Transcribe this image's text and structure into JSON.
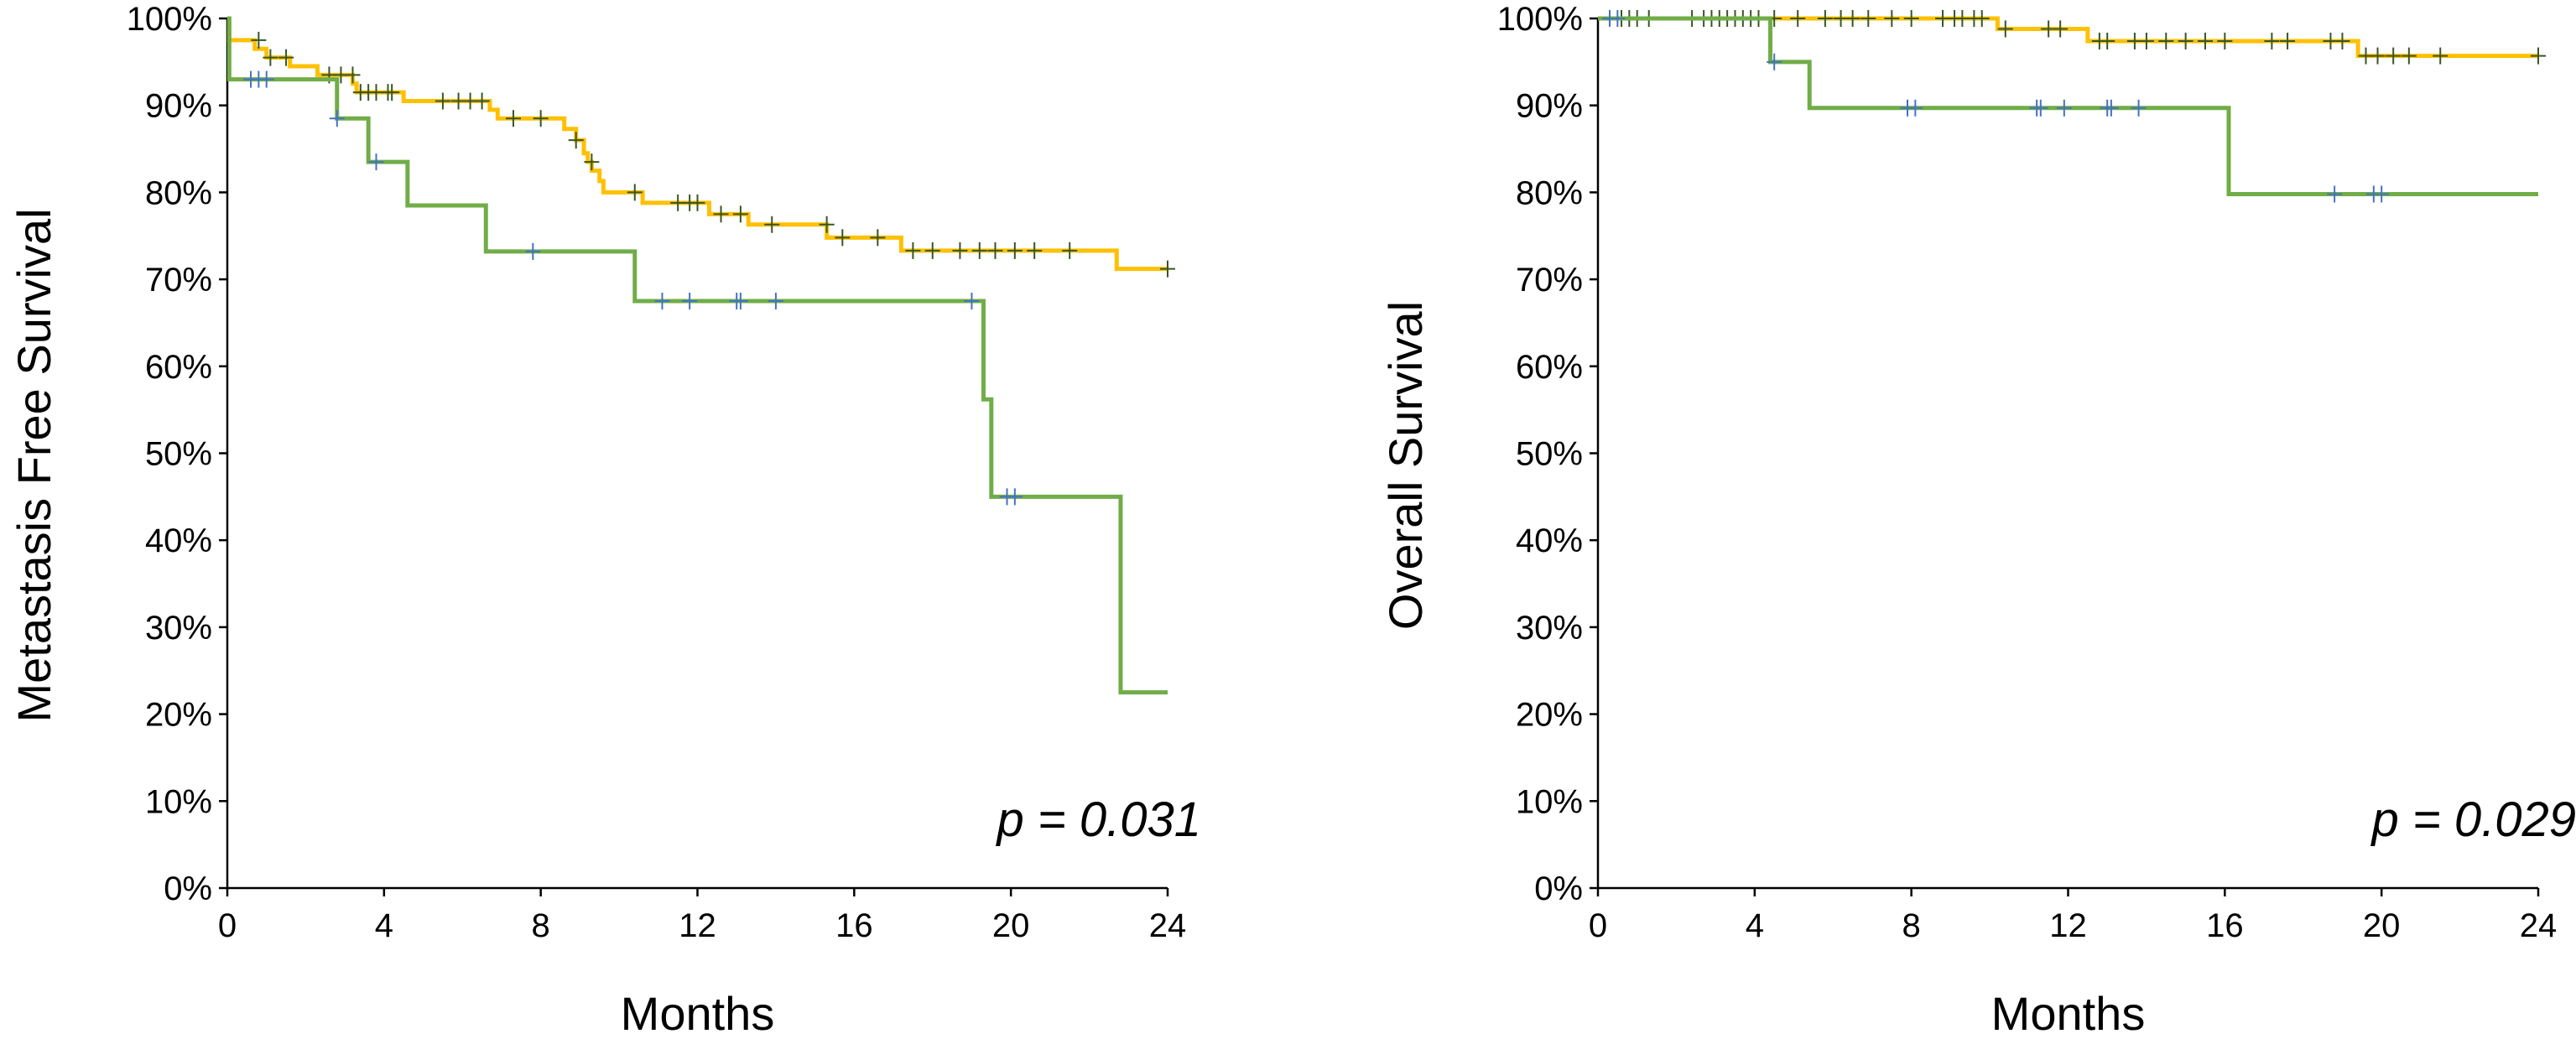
{
  "colors": {
    "yellow": "#FFC000",
    "green": "#70AD47",
    "censor_yellow": "#375623",
    "censor_green": "#4472C4"
  },
  "chart_data": [
    {
      "type": "line",
      "subtype": "kaplan-meier",
      "title": "",
      "xlabel": "Months",
      "ylabel": "Metastasis Free Survival",
      "xlim": [
        0,
        24
      ],
      "ylim": [
        0,
        100
      ],
      "x_ticks": [
        "0",
        "4",
        "8",
        "12",
        "16",
        "20",
        "24"
      ],
      "y_ticks": [
        "0%",
        "10%",
        "20%",
        "30%",
        "40%",
        "50%",
        "60%",
        "70%",
        "80%",
        "90%",
        "100%"
      ],
      "annotation": "p = 0.031",
      "series": [
        {
          "name": "yellow",
          "steps": [
            [
              0,
              100
            ],
            [
              0.05,
              97.5
            ],
            [
              0.7,
              96.5
            ],
            [
              1.0,
              95.5
            ],
            [
              1.6,
              94.5
            ],
            [
              2.3,
              93.5
            ],
            [
              3.2,
              92.5
            ],
            [
              3.3,
              91.5
            ],
            [
              4.5,
              90.5
            ],
            [
              6.7,
              89.5
            ],
            [
              6.9,
              88.5
            ],
            [
              8.6,
              87.3
            ],
            [
              8.9,
              86
            ],
            [
              9.1,
              84.5
            ],
            [
              9.2,
              83.5
            ],
            [
              9.3,
              82.5
            ],
            [
              9.5,
              81.3
            ],
            [
              9.6,
              80
            ],
            [
              10.6,
              78.8
            ],
            [
              12.3,
              77.5
            ],
            [
              13.3,
              76.3
            ],
            [
              15.3,
              74.8
            ],
            [
              17.2,
              73.3
            ],
            [
              22.7,
              71.2
            ],
            [
              24,
              71.2
            ]
          ],
          "censors": [
            [
              0.8,
              97.5
            ],
            [
              1.1,
              95.5
            ],
            [
              1.5,
              95.5
            ],
            [
              2.6,
              93.5
            ],
            [
              2.9,
              93.5
            ],
            [
              3.2,
              93.5
            ],
            [
              3.4,
              91.5
            ],
            [
              3.6,
              91.5
            ],
            [
              3.8,
              91.5
            ],
            [
              4.1,
              91.5
            ],
            [
              4.2,
              91.5
            ],
            [
              5.5,
              90.5
            ],
            [
              5.9,
              90.5
            ],
            [
              6.2,
              90.5
            ],
            [
              6.5,
              90.5
            ],
            [
              7.3,
              88.5
            ],
            [
              8.0,
              88.5
            ],
            [
              8.9,
              86
            ],
            [
              9.3,
              83.5
            ],
            [
              10.4,
              80
            ],
            [
              11.5,
              78.8
            ],
            [
              11.8,
              78.8
            ],
            [
              12.0,
              78.8
            ],
            [
              12.6,
              77.5
            ],
            [
              13.1,
              77.5
            ],
            [
              13.9,
              76.3
            ],
            [
              15.3,
              76.3
            ],
            [
              15.7,
              74.8
            ],
            [
              16.6,
              74.8
            ],
            [
              17.5,
              73.3
            ],
            [
              18.0,
              73.3
            ],
            [
              18.7,
              73.3
            ],
            [
              19.2,
              73.3
            ],
            [
              19.6,
              73.3
            ],
            [
              20.1,
              73.3
            ],
            [
              20.6,
              73.3
            ],
            [
              21.5,
              73.3
            ],
            [
              24.0,
              71.2
            ]
          ]
        },
        {
          "name": "green",
          "steps": [
            [
              0,
              100
            ],
            [
              0.05,
              93
            ],
            [
              2.8,
              88.5
            ],
            [
              3.6,
              83.5
            ],
            [
              4.6,
              78.5
            ],
            [
              6.6,
              73.2
            ],
            [
              10.4,
              67.5
            ],
            [
              19.3,
              56.2
            ],
            [
              19.5,
              45
            ],
            [
              22.8,
              22.5
            ],
            [
              24,
              22.5
            ]
          ],
          "censors": [
            [
              0.6,
              93
            ],
            [
              0.8,
              93
            ],
            [
              1.0,
              93
            ],
            [
              2.8,
              88.5
            ],
            [
              3.8,
              83.5
            ],
            [
              7.8,
              73.2
            ],
            [
              11.1,
              67.5
            ],
            [
              11.8,
              67.5
            ],
            [
              13.0,
              67.5
            ],
            [
              13.1,
              67.5
            ],
            [
              14.0,
              67.5
            ],
            [
              19.0,
              67.5
            ],
            [
              19.9,
              45
            ],
            [
              20.1,
              45
            ]
          ]
        }
      ]
    },
    {
      "type": "line",
      "subtype": "kaplan-meier",
      "title": "",
      "xlabel": "Months",
      "ylabel": "Overall Survival",
      "xlim": [
        0,
        24
      ],
      "ylim": [
        0,
        100
      ],
      "x_ticks": [
        "0",
        "4",
        "8",
        "12",
        "16",
        "20",
        "24"
      ],
      "y_ticks": [
        "0%",
        "10%",
        "20%",
        "30%",
        "40%",
        "50%",
        "60%",
        "70%",
        "80%",
        "90%",
        "100%"
      ],
      "annotation": "p = 0.029",
      "series": [
        {
          "name": "yellow",
          "steps": [
            [
              0,
              100
            ],
            [
              10.2,
              98.8
            ],
            [
              12.5,
              97.4
            ],
            [
              19.4,
              95.7
            ],
            [
              24,
              95.7
            ]
          ],
          "censors": [
            [
              0.6,
              100
            ],
            [
              0.8,
              100
            ],
            [
              1.0,
              100
            ],
            [
              1.3,
              100
            ],
            [
              2.4,
              100
            ],
            [
              2.7,
              100
            ],
            [
              2.9,
              100
            ],
            [
              3.1,
              100
            ],
            [
              3.3,
              100
            ],
            [
              3.5,
              100
            ],
            [
              3.7,
              100
            ],
            [
              3.9,
              100
            ],
            [
              4.1,
              100
            ],
            [
              4.5,
              100
            ],
            [
              5.1,
              100
            ],
            [
              5.8,
              100
            ],
            [
              6.2,
              100
            ],
            [
              6.5,
              100
            ],
            [
              6.9,
              100
            ],
            [
              7.5,
              100
            ],
            [
              8.0,
              100
            ],
            [
              8.8,
              100
            ],
            [
              9.1,
              100
            ],
            [
              9.3,
              100
            ],
            [
              9.6,
              100
            ],
            [
              9.8,
              100
            ],
            [
              10.4,
              98.8
            ],
            [
              11.5,
              98.8
            ],
            [
              11.8,
              98.8
            ],
            [
              12.8,
              97.4
            ],
            [
              13.0,
              97.4
            ],
            [
              13.7,
              97.4
            ],
            [
              14.0,
              97.4
            ],
            [
              14.5,
              97.4
            ],
            [
              15.0,
              97.4
            ],
            [
              15.5,
              97.4
            ],
            [
              16.0,
              97.4
            ],
            [
              17.2,
              97.4
            ],
            [
              17.6,
              97.4
            ],
            [
              18.7,
              97.4
            ],
            [
              19.0,
              97.4
            ],
            [
              19.6,
              95.7
            ],
            [
              19.9,
              95.7
            ],
            [
              20.3,
              95.7
            ],
            [
              20.7,
              95.7
            ],
            [
              21.5,
              95.7
            ],
            [
              24.0,
              95.7
            ]
          ]
        },
        {
          "name": "green",
          "steps": [
            [
              0,
              100
            ],
            [
              4.4,
              95
            ],
            [
              5.4,
              89.7
            ],
            [
              16.1,
              79.8
            ],
            [
              24,
              79.8
            ]
          ],
          "censors": [
            [
              0.3,
              100
            ],
            [
              0.5,
              100
            ],
            [
              4.5,
              95
            ],
            [
              7.9,
              89.7
            ],
            [
              8.1,
              89.7
            ],
            [
              11.2,
              89.7
            ],
            [
              11.3,
              89.7
            ],
            [
              11.9,
              89.7
            ],
            [
              13.0,
              89.7
            ],
            [
              13.1,
              89.7
            ],
            [
              13.8,
              89.7
            ],
            [
              18.8,
              79.8
            ],
            [
              19.8,
              79.8
            ],
            [
              20.0,
              79.8
            ]
          ]
        }
      ]
    }
  ]
}
